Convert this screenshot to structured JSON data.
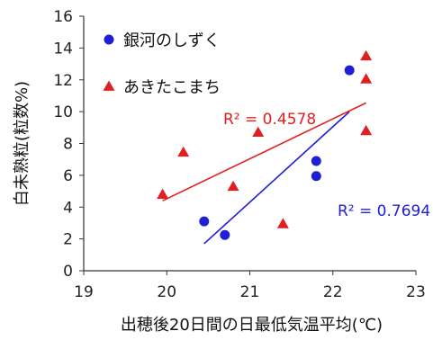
{
  "chart_data": {
    "type": "scatter",
    "xlabel": "出穂後20日間の日最低気温平均(℃)",
    "ylabel": "白未熟粒(粒数%)",
    "xlim": [
      19,
      23
    ],
    "ylim": [
      0,
      16
    ],
    "xticks": [
      19,
      20,
      21,
      22,
      23
    ],
    "yticks": [
      0,
      2,
      4,
      6,
      8,
      10,
      12,
      14,
      16
    ],
    "grid": false,
    "legend_position": "top-left",
    "series": [
      {
        "name": "銀河のしずく",
        "marker": "circle",
        "color": "#1f1fd6",
        "points": [
          {
            "x": 20.45,
            "y": 3.1
          },
          {
            "x": 20.7,
            "y": 2.25
          },
          {
            "x": 21.8,
            "y": 6.9
          },
          {
            "x": 21.8,
            "y": 5.95
          },
          {
            "x": 22.2,
            "y": 12.6
          }
        ],
        "trendline": {
          "x": [
            20.45,
            22.2
          ],
          "y": [
            1.7,
            10.0
          ]
        },
        "r2_label": "R² = 0.7694"
      },
      {
        "name": "あきたこまち",
        "marker": "triangle",
        "color": "#e02020",
        "points": [
          {
            "x": 19.95,
            "y": 4.8
          },
          {
            "x": 20.2,
            "y": 7.45
          },
          {
            "x": 20.8,
            "y": 5.3
          },
          {
            "x": 21.1,
            "y": 8.7
          },
          {
            "x": 21.4,
            "y": 2.95
          },
          {
            "x": 22.4,
            "y": 13.5
          },
          {
            "x": 22.4,
            "y": 12.05
          },
          {
            "x": 22.4,
            "y": 8.8
          }
        ],
        "trendline": {
          "x": [
            19.95,
            22.4
          ],
          "y": [
            4.4,
            10.55
          ]
        },
        "r2_label": "R² = 0.4578"
      }
    ]
  }
}
